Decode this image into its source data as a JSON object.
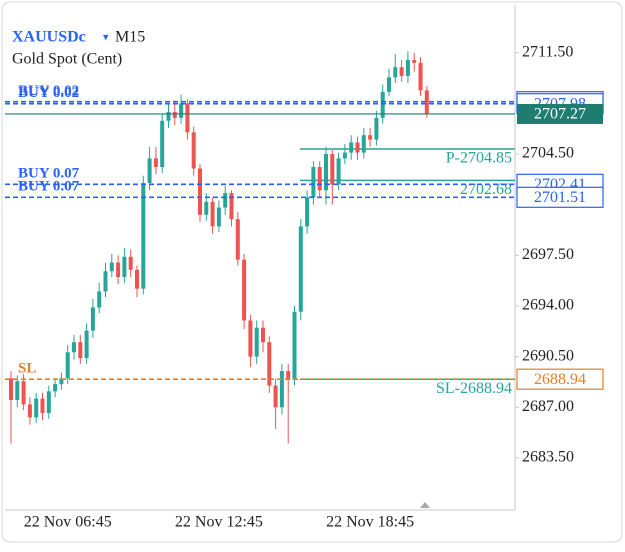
{
  "chart_data": {
    "type": "candlestick",
    "symbol": "XAUUSDc",
    "timeframe": "M15",
    "description": "Gold Spot (Cent)",
    "categories": [
      null,
      null,
      null,
      null,
      null,
      null,
      null,
      null,
      null,
      "22 Nov 06:45",
      null,
      null,
      null,
      null,
      null,
      null,
      null,
      null,
      null,
      null,
      null,
      null,
      null,
      null,
      null,
      null,
      null,
      null,
      null,
      null,
      null,
      null,
      null,
      "22 Nov 12:45",
      null,
      null,
      null,
      null,
      null,
      null,
      null,
      null,
      null,
      null,
      null,
      null,
      null,
      null,
      null,
      null,
      null,
      null,
      null,
      null,
      null,
      null,
      null,
      "22 Nov 18:45",
      null,
      null,
      null,
      null,
      null,
      null,
      null,
      null,
      null
    ],
    "open": [
      2689.0,
      2687.5,
      2688.8,
      2687.2,
      2686.3,
      2687.6,
      2686.6,
      2688.1,
      2688.6,
      2689.0,
      2690.8,
      2691.5,
      2690.4,
      2692.3,
      2693.9,
      2695.0,
      2696.4,
      2697.0,
      2696.0,
      2697.4,
      2696.5,
      2695.2,
      2702.5,
      2704.2,
      2703.6,
      2706.8,
      2707.4,
      2707.0,
      2708.0,
      2706.0,
      2703.5,
      2700.3,
      2701.2,
      2699.5,
      2700.8,
      2701.8,
      2700.0,
      2697.2,
      2693.0,
      2690.5,
      2692.5,
      2691.5,
      2688.5,
      2687.0,
      2689.5,
      2688.9,
      2693.6,
      2699.5,
      2701.5,
      2703.6,
      2702.0,
      2704.5,
      2702.4,
      2704.2,
      2704.6,
      2705.3,
      2704.6,
      2705.8,
      2705.5,
      2707.0,
      2708.8,
      2709.8,
      2710.5,
      2709.9,
      2711.0,
      2710.8,
      2708.9
    ],
    "high": [
      2689.5,
      2689.2,
      2689.3,
      2687.7,
      2688.0,
      2688.0,
      2688.5,
      2689.0,
      2689.4,
      2691.3,
      2692.0,
      2692.0,
      2692.8,
      2694.5,
      2695.6,
      2697.0,
      2697.6,
      2697.5,
      2698.0,
      2697.9,
      2696.8,
      2703.0,
      2705.0,
      2705.0,
      2707.3,
      2708.0,
      2708.2,
      2708.6,
      2708.3,
      2706.4,
      2703.8,
      2701.8,
      2701.5,
      2701.3,
      2702.3,
      2702.0,
      2700.5,
      2697.6,
      2693.4,
      2693.0,
      2693.0,
      2691.9,
      2689.0,
      2690.0,
      2690.0,
      2694.0,
      2700.0,
      2702.0,
      2704.0,
      2704.0,
      2705.0,
      2704.8,
      2704.6,
      2705.2,
      2705.8,
      2705.7,
      2706.3,
      2706.3,
      2707.5,
      2709.3,
      2710.4,
      2711.4,
      2711.0,
      2711.6,
      2711.5,
      2711.2,
      2709.2
    ],
    "low": [
      2684.5,
      2687.0,
      2686.8,
      2685.8,
      2685.9,
      2686.1,
      2686.2,
      2687.7,
      2688.2,
      2688.6,
      2690.3,
      2690.0,
      2690.0,
      2691.8,
      2693.5,
      2694.6,
      2696.0,
      2695.5,
      2695.6,
      2696.0,
      2694.6,
      2694.8,
      2702.0,
      2703.1,
      2703.2,
      2706.3,
      2706.5,
      2706.6,
      2705.5,
      2703.0,
      2699.8,
      2699.9,
      2699.0,
      2699.1,
      2700.3,
      2699.5,
      2696.8,
      2692.4,
      2689.8,
      2690.0,
      2690.8,
      2688.0,
      2685.5,
      2686.5,
      2684.5,
      2688.5,
      2693.0,
      2699.0,
      2701.0,
      2701.5,
      2701.0,
      2701.0,
      2702.0,
      2703.8,
      2704.1,
      2704.1,
      2704.2,
      2705.0,
      2705.1,
      2706.6,
      2708.5,
      2709.4,
      2709.5,
      2709.4,
      2710.2,
      2708.5,
      2707.0
    ],
    "close": [
      2687.5,
      2688.8,
      2687.2,
      2686.3,
      2687.6,
      2686.6,
      2688.1,
      2688.6,
      2689.0,
      2690.8,
      2691.5,
      2690.4,
      2692.3,
      2693.9,
      2695.0,
      2696.4,
      2697.0,
      2696.0,
      2697.4,
      2696.5,
      2695.2,
      2702.5,
      2704.2,
      2703.6,
      2706.8,
      2707.4,
      2707.0,
      2708.0,
      2706.0,
      2703.5,
      2700.3,
      2701.2,
      2699.5,
      2700.8,
      2701.8,
      2700.0,
      2697.2,
      2693.0,
      2690.5,
      2692.5,
      2691.5,
      2688.5,
      2687.0,
      2689.5,
      2688.9,
      2693.6,
      2699.5,
      2701.5,
      2703.6,
      2702.0,
      2704.5,
      2702.4,
      2704.2,
      2704.6,
      2705.3,
      2704.6,
      2705.8,
      2705.5,
      2707.0,
      2708.8,
      2709.8,
      2710.5,
      2709.9,
      2711.0,
      2710.8,
      2708.9,
      2707.27
    ],
    "up_color": "#26a69a",
    "down_color": "#ef5350",
    "ylim": [
      2679.9,
      2714.8
    ],
    "yticks": [
      {
        "value": 2711.5,
        "label": "2711.50"
      },
      {
        "value": 2704.5,
        "label": "2704.50"
      },
      {
        "value": 2697.5,
        "label": "2697.50"
      },
      {
        "value": 2694,
        "label": "2694.00"
      },
      {
        "value": 2690.5,
        "label": "2690.50"
      },
      {
        "value": 2687,
        "label": "2687.00"
      },
      {
        "value": 2683.5,
        "label": "2683.50"
      }
    ],
    "levels": [
      {
        "name": "BUY 0.02",
        "value": 2708.12,
        "color": "#2962ff"
      },
      {
        "name": "BUY 0.02",
        "value": 2707.98,
        "color": "#2962ff"
      },
      {
        "name": "BUY 0.07",
        "value": 2702.41,
        "color": "#2962ff"
      },
      {
        "name": "BUY 0.07",
        "value": 2701.51,
        "color": "#2962ff"
      },
      {
        "name": "SL",
        "value": 2688.94,
        "color": "#e67e22"
      }
    ],
    "targets": [
      {
        "label": "P-2704.85",
        "value": 2704.85
      },
      {
        "label": "2702.68",
        "value": 2702.68
      },
      {
        "label": "SL-2688.94",
        "value": 2688.94
      }
    ],
    "target_color": "#26a69a",
    "last_price": 2707.27,
    "last_price_color": "#1e7d70"
  }
}
